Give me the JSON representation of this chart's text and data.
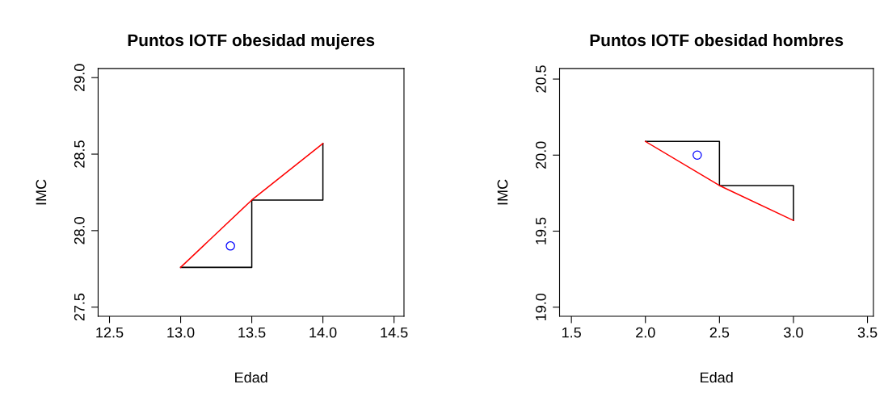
{
  "chart_data": [
    {
      "type": "line",
      "title": "Puntos IOTF obesidad mujeres",
      "xlabel": "Edad",
      "ylabel": "IMC",
      "xlim": [
        12.42,
        14.57
      ],
      "ylim": [
        27.44,
        29.06
      ],
      "xticks": [
        12.5,
        {
          "value": 13,
          "label": "13.0"
        },
        13.5,
        {
          "value": 14,
          "label": "14.0"
        },
        14.5
      ],
      "yticks": [
        27.5,
        {
          "value": 28,
          "label": "28.0"
        },
        28.5,
        {
          "value": 29,
          "label": "29.0"
        }
      ],
      "grid": false,
      "legend": false,
      "series": [
        {
          "color": "#000000",
          "x": [
            13.0,
            13.5,
            13.5,
            14.0,
            14.0
          ],
          "values": [
            27.76,
            27.76,
            28.2,
            28.2,
            28.57
          ]
        },
        {
          "color": "#ff0000",
          "x": [
            13.0,
            13.5,
            14.0
          ],
          "values": [
            27.76,
            28.2,
            28.57
          ]
        },
        {
          "type": "scatter",
          "color": "#0000ff",
          "marker": "circle",
          "x": [
            13.35
          ],
          "values": [
            27.9
          ]
        }
      ]
    },
    {
      "type": "line",
      "title": "Puntos IOTF obesidad hombres",
      "xlabel": "Edad",
      "ylabel": "IMC",
      "xlim": [
        1.42,
        3.54
      ],
      "ylim": [
        18.94,
        20.57
      ],
      "xticks": [
        1.5,
        {
          "value": 2,
          "label": "2.0"
        },
        2.5,
        {
          "value": 3,
          "label": "3.0"
        },
        3.5
      ],
      "yticks": [
        {
          "value": 19,
          "label": "19.0"
        },
        19.5,
        {
          "value": 20,
          "label": "20.0"
        },
        20.5
      ],
      "grid": false,
      "legend": false,
      "series": [
        {
          "color": "#000000",
          "x": [
            2.0,
            2.5,
            2.5,
            3.0,
            3.0
          ],
          "values": [
            20.09,
            20.09,
            19.8,
            19.8,
            19.57
          ]
        },
        {
          "color": "#ff0000",
          "x": [
            2.0,
            2.5,
            3.0
          ],
          "values": [
            20.09,
            19.8,
            19.57
          ]
        },
        {
          "type": "scatter",
          "color": "#0000ff",
          "marker": "circle",
          "x": [
            2.35
          ],
          "values": [
            20.0
          ]
        }
      ]
    }
  ]
}
